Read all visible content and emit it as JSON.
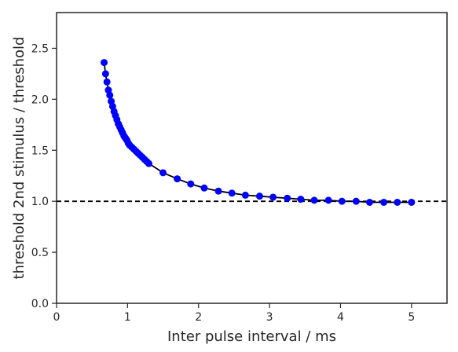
{
  "chart_data": {
    "type": "line",
    "xlabel": "Inter pulse interval / ms",
    "ylabel": "threshold 2nd stimulus / threshold",
    "xlim": [
      0,
      5.5
    ],
    "ylim": [
      0,
      2.85
    ],
    "xticks": [
      0,
      1,
      2,
      3,
      4,
      5
    ],
    "xtick_labels": [
      "0",
      "1",
      "2",
      "3",
      "4",
      "5"
    ],
    "yticks": [
      0.0,
      0.5,
      1.0,
      1.5,
      2.0,
      2.5
    ],
    "ytick_labels": [
      "0.0",
      "0.5",
      "1.0",
      "1.5",
      "2.0",
      "2.5"
    ],
    "grid": false,
    "reference_line": {
      "y": 1.0,
      "style": "dashed",
      "color": "#000000"
    },
    "series": [
      {
        "color": "#000000",
        "marker_color": "#0000ff",
        "marker": "circle",
        "x": [
          0.67,
          0.69,
          0.71,
          0.73,
          0.75,
          0.77,
          0.79,
          0.81,
          0.83,
          0.85,
          0.87,
          0.89,
          0.91,
          0.93,
          0.95,
          0.97,
          0.99,
          1.01,
          1.03,
          1.06,
          1.09,
          1.12,
          1.15,
          1.18,
          1.21,
          1.24,
          1.27,
          1.3,
          1.5,
          1.7,
          1.89,
          2.08,
          2.28,
          2.47,
          2.66,
          2.86,
          3.05,
          3.25,
          3.44,
          3.63,
          3.83,
          4.02,
          4.22,
          4.41,
          4.61,
          4.8,
          5.0
        ],
        "y": [
          2.36,
          2.25,
          2.17,
          2.09,
          2.04,
          1.98,
          1.93,
          1.88,
          1.84,
          1.8,
          1.76,
          1.73,
          1.7,
          1.67,
          1.64,
          1.62,
          1.6,
          1.57,
          1.55,
          1.53,
          1.51,
          1.49,
          1.47,
          1.45,
          1.43,
          1.41,
          1.39,
          1.37,
          1.28,
          1.22,
          1.17,
          1.13,
          1.1,
          1.08,
          1.06,
          1.05,
          1.04,
          1.03,
          1.02,
          1.01,
          1.01,
          1.0,
          1.0,
          0.99,
          0.99,
          0.99,
          0.99
        ]
      }
    ]
  },
  "colors": {
    "axis": "#262626",
    "line": "#000000",
    "marker": "#0000ff",
    "reference": "#000000"
  }
}
